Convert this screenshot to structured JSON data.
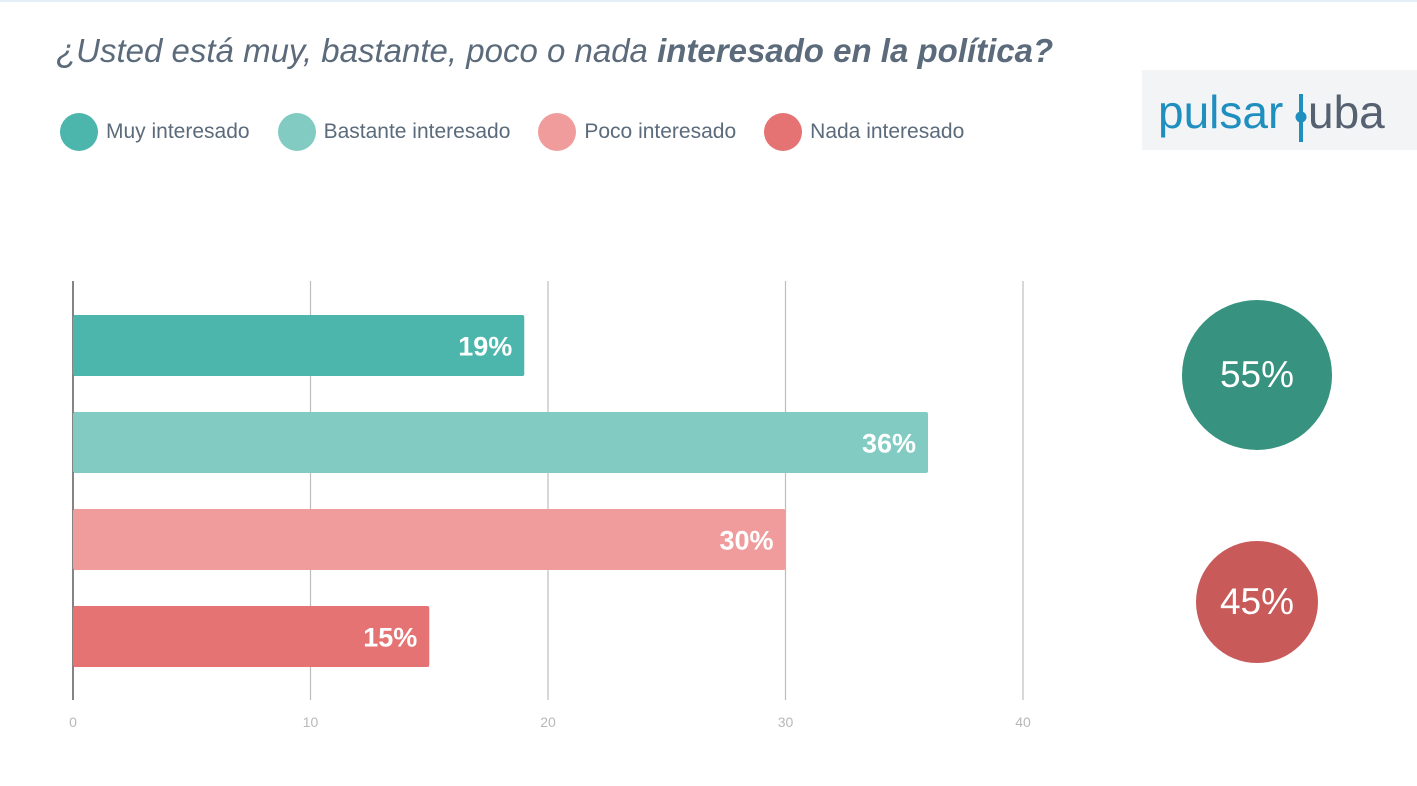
{
  "title": {
    "prefix": "¿Usted está muy, bastante, poco o nada ",
    "emphasis": "interesado en la política?"
  },
  "legend": [
    {
      "label": "Muy interesado",
      "color": "#4db6ac"
    },
    {
      "label": "Bastante interesado",
      "color": "#82cbc3"
    },
    {
      "label": "Poco interesado",
      "color": "#f09c9c"
    },
    {
      "label": "Nada interesado",
      "color": "#e57373"
    }
  ],
  "logo": {
    "left": "pulsar",
    "right": "uba",
    "color": "#1f8fc0"
  },
  "summary": {
    "interested": "55%",
    "not_interested": "45%",
    "interested_color": "#37937f",
    "not_interested_color": "#c85a5a"
  },
  "chart_data": {
    "type": "bar",
    "orientation": "horizontal",
    "categories": [
      "Muy interesado",
      "Bastante interesado",
      "Poco interesado",
      "Nada interesado"
    ],
    "values": [
      19,
      36,
      30,
      15
    ],
    "value_labels": [
      "19%",
      "36%",
      "30%",
      "15%"
    ],
    "colors": [
      "#4db6ac",
      "#82cbc3",
      "#f09c9c",
      "#e57373"
    ],
    "xlim": [
      0,
      40
    ],
    "xticks": [
      "0",
      "10",
      "20",
      "30",
      "40"
    ],
    "grid": true,
    "legend_position": "top-left"
  }
}
